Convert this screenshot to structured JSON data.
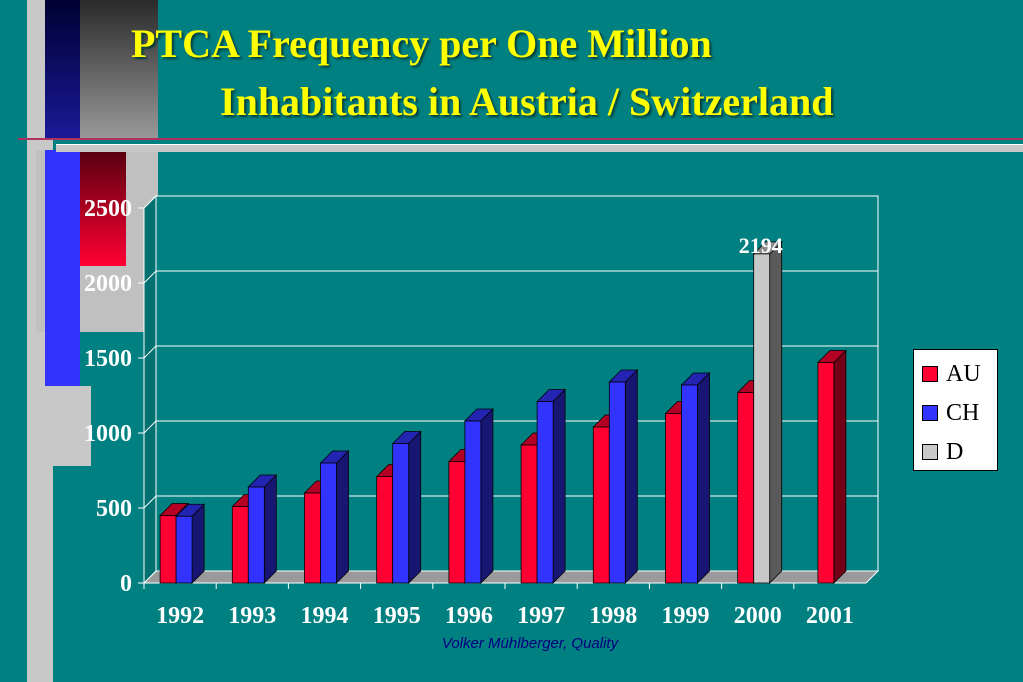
{
  "title": {
    "line1": "PTCA Frequency per One Million",
    "line2": "Inhabitants in Austria / Switzerland"
  },
  "footer": "Volker Mühlberger, Quality",
  "colors": {
    "background": "#008080",
    "title": "#ffff00",
    "AU": "#ff0033",
    "CH": "#3333ff",
    "D": "#c8c8c8"
  },
  "chart_data": {
    "type": "bar",
    "title": "PTCA Frequency per One Million Inhabitants in Austria / Switzerland",
    "xlabel": "",
    "ylabel": "",
    "ylim": [
      0,
      2500
    ],
    "yticks": [
      0,
      500,
      1000,
      1500,
      2000,
      2500
    ],
    "grid": true,
    "legend_position": "right",
    "categories": [
      "1992",
      "1993",
      "1994",
      "1995",
      "1996",
      "1997",
      "1998",
      "1999",
      "2000",
      "2001"
    ],
    "series": [
      {
        "name": "AU",
        "color": "#ff0033",
        "values": [
          450,
          510,
          600,
          710,
          810,
          920,
          1040,
          1130,
          1270,
          1470
        ]
      },
      {
        "name": "CH",
        "color": "#3333ff",
        "values": [
          445,
          640,
          800,
          930,
          1080,
          1210,
          1340,
          1320,
          null,
          null
        ]
      },
      {
        "name": "D",
        "color": "#c8c8c8",
        "values": [
          null,
          null,
          null,
          null,
          null,
          null,
          null,
          null,
          2194,
          null
        ]
      }
    ],
    "annotations": [
      {
        "category": "2000",
        "series": "D",
        "text": "2194"
      }
    ]
  }
}
